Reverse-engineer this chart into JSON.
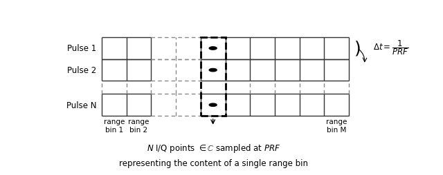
{
  "fig_width": 6.4,
  "fig_height": 2.55,
  "dpi": 100,
  "gl": 0.135,
  "gr": 0.855,
  "gt": 0.875,
  "gb": 0.295,
  "num_cols": 10,
  "highlight_col": 4,
  "pulse_labels": [
    "Pulse 1",
    "Pulse 2",
    "Pulse N"
  ],
  "caption_line1": "$N$ I/Q points $\\in \\mathbb{C}$ sampled at $\\mathit{PRF}$",
  "caption_line2": "representing the content of a single range bin",
  "background_color": "white",
  "grid_color": "#333333",
  "dashed_color": "#888888",
  "text_color": "black"
}
